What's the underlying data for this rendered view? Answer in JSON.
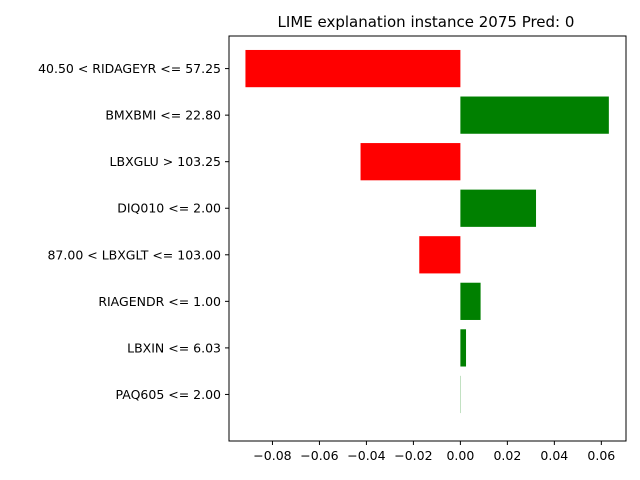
{
  "chart_data": {
    "type": "bar",
    "orientation": "horizontal",
    "title": "LIME explanation instance 2075 Pred: 0",
    "xlabel": "",
    "ylabel": "",
    "categories": [
      "40.50 < RIDAGEYR <= 57.25",
      "BMXBMI <= 22.80",
      "LBXGLU > 103.25",
      "DIQ010 <= 2.00",
      "87.00 < LBXGLT <= 103.00",
      "RIAGENDR <= 1.00",
      "LBXIN <= 6.03",
      "PAQ605 <= 2.00"
    ],
    "values": [
      -0.0915,
      0.0632,
      -0.0425,
      0.0322,
      -0.0175,
      0.0086,
      0.0024,
      0.0001
    ],
    "xlim": [
      -0.0985,
      0.0705
    ],
    "xticks": [
      -0.08,
      -0.06,
      -0.04,
      -0.02,
      0.0,
      0.02,
      0.04,
      0.06
    ],
    "xtick_labels": [
      "−0.08",
      "−0.06",
      "−0.04",
      "−0.02",
      "0.00",
      "0.02",
      "0.04",
      "0.06"
    ],
    "grid": false,
    "colors": {
      "positive": "#008000",
      "negative": "#ff0000"
    }
  }
}
